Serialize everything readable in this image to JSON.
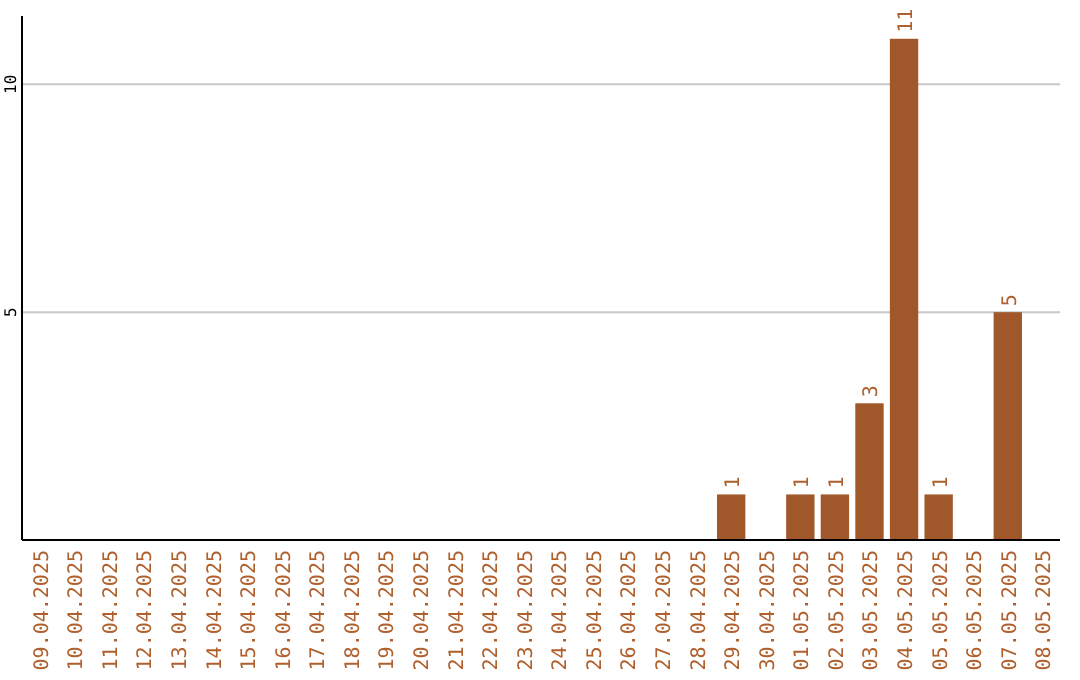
{
  "chart_data": {
    "type": "bar",
    "categories": [
      "09.04.2025",
      "10.04.2025",
      "11.04.2025",
      "12.04.2025",
      "13.04.2025",
      "14.04.2025",
      "15.04.2025",
      "16.04.2025",
      "17.04.2025",
      "18.04.2025",
      "19.04.2025",
      "20.04.2025",
      "21.04.2025",
      "22.04.2025",
      "23.04.2025",
      "24.04.2025",
      "25.04.2025",
      "26.04.2025",
      "27.04.2025",
      "28.04.2025",
      "29.04.2025",
      "30.04.2025",
      "01.05.2025",
      "02.05.2025",
      "03.05.2025",
      "04.05.2025",
      "05.05.2025",
      "06.05.2025",
      "07.05.2025",
      "08.05.2025"
    ],
    "values": [
      0,
      0,
      0,
      0,
      0,
      0,
      0,
      0,
      0,
      0,
      0,
      0,
      0,
      0,
      0,
      0,
      0,
      0,
      0,
      0,
      1,
      0,
      1,
      1,
      3,
      11,
      1,
      0,
      5,
      0
    ],
    "value_labels": [
      null,
      null,
      null,
      null,
      null,
      null,
      null,
      null,
      null,
      null,
      null,
      null,
      null,
      null,
      null,
      null,
      null,
      null,
      null,
      null,
      "1",
      null,
      "1",
      "1",
      "3",
      "11",
      "1",
      null,
      "5",
      null
    ],
    "color": "#a0572a",
    "ylim": [
      0,
      11.5
    ],
    "yticks": [
      5,
      10
    ],
    "grid": "y"
  }
}
